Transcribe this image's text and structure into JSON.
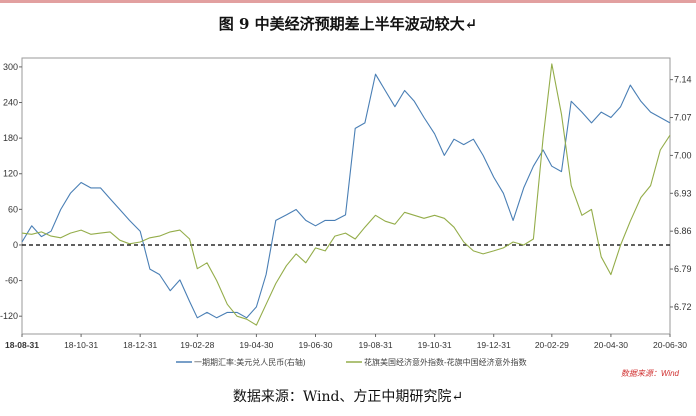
{
  "figure": {
    "title": "图 9    中美经济预期差上半年波动较大↵",
    "source": "数据来源：Wind、方正中期研究院↵",
    "watermark": "数据来源：Wind"
  },
  "colors": {
    "series1": "#4a7fb5",
    "series2": "#94ad4a",
    "zero_line": "#000000",
    "top_rule": "#e2a0a0"
  },
  "chart_data": {
    "type": "line",
    "title": "",
    "xlabel": "",
    "ylabel": "",
    "x_ticks": [
      "18-08-31",
      "18-10-31",
      "18-12-31",
      "19-02-28",
      "19-04-30",
      "19-06-30",
      "19-08-31",
      "19-10-31",
      "19-12-31",
      "20-02-29",
      "20-04-30",
      "20-06-30"
    ],
    "y_left": {
      "ticks": [
        "300",
        "240",
        "180",
        "120",
        "60",
        "0",
        "-60",
        "-120"
      ],
      "min": -150,
      "max": 315
    },
    "y_right": {
      "ticks": [
        "7.14",
        "7.07",
        "7.00",
        "6.93",
        "6.86",
        "6.79",
        "6.72"
      ],
      "min": 6.67,
      "max": 7.18
    },
    "zero_reference_line": true,
    "legend_position": "bottom",
    "series": [
      {
        "name": "一期期汇率:美元兑人民币(右轴)",
        "axis": "right",
        "points": [
          [
            "18-08-31",
            6.84
          ],
          [
            "18-09-10",
            6.87
          ],
          [
            "18-09-20",
            6.85
          ],
          [
            "18-09-30",
            6.86
          ],
          [
            "18-10-10",
            6.9
          ],
          [
            "18-10-20",
            6.93
          ],
          [
            "18-10-31",
            6.95
          ],
          [
            "18-11-10",
            6.94
          ],
          [
            "18-11-20",
            6.94
          ],
          [
            "18-11-30",
            6.92
          ],
          [
            "18-12-10",
            6.9
          ],
          [
            "18-12-20",
            6.88
          ],
          [
            "18-12-31",
            6.86
          ],
          [
            "19-01-10",
            6.79
          ],
          [
            "19-01-20",
            6.78
          ],
          [
            "19-01-31",
            6.75
          ],
          [
            "19-02-10",
            6.77
          ],
          [
            "19-02-20",
            6.73
          ],
          [
            "19-02-28",
            6.7
          ],
          [
            "19-03-10",
            6.71
          ],
          [
            "19-03-20",
            6.7
          ],
          [
            "19-03-31",
            6.71
          ],
          [
            "19-04-10",
            6.71
          ],
          [
            "19-04-20",
            6.7
          ],
          [
            "19-04-30",
            6.72
          ],
          [
            "19-05-10",
            6.78
          ],
          [
            "19-05-20",
            6.88
          ],
          [
            "19-05-31",
            6.89
          ],
          [
            "19-06-10",
            6.9
          ],
          [
            "19-06-20",
            6.88
          ],
          [
            "19-06-30",
            6.87
          ],
          [
            "19-07-10",
            6.88
          ],
          [
            "19-07-20",
            6.88
          ],
          [
            "19-07-31",
            6.89
          ],
          [
            "19-08-10",
            7.05
          ],
          [
            "19-08-20",
            7.06
          ],
          [
            "19-08-31",
            7.15
          ],
          [
            "19-09-10",
            7.12
          ],
          [
            "19-09-20",
            7.09
          ],
          [
            "19-09-30",
            7.12
          ],
          [
            "19-10-10",
            7.1
          ],
          [
            "19-10-20",
            7.07
          ],
          [
            "19-10-31",
            7.04
          ],
          [
            "19-11-10",
            7.0
          ],
          [
            "19-11-20",
            7.03
          ],
          [
            "19-11-30",
            7.02
          ],
          [
            "19-12-10",
            7.03
          ],
          [
            "19-12-20",
            7.0
          ],
          [
            "19-12-31",
            6.96
          ],
          [
            "20-01-10",
            6.93
          ],
          [
            "20-01-20",
            6.88
          ],
          [
            "20-01-31",
            6.94
          ],
          [
            "20-02-10",
            6.98
          ],
          [
            "20-02-20",
            7.01
          ],
          [
            "20-02-29",
            6.98
          ],
          [
            "20-03-10",
            6.97
          ],
          [
            "20-03-20",
            7.1
          ],
          [
            "20-03-31",
            7.08
          ],
          [
            "20-04-10",
            7.06
          ],
          [
            "20-04-20",
            7.08
          ],
          [
            "20-04-30",
            7.07
          ],
          [
            "20-05-10",
            7.09
          ],
          [
            "20-05-20",
            7.13
          ],
          [
            "20-05-31",
            7.1
          ],
          [
            "20-06-10",
            7.08
          ],
          [
            "20-06-20",
            7.07
          ],
          [
            "20-06-30",
            7.06
          ]
        ]
      },
      {
        "name": "花旗美国经济意外指数-花旗中国经济意外指数",
        "axis": "left",
        "points": [
          [
            "18-08-31",
            20
          ],
          [
            "18-09-10",
            18
          ],
          [
            "18-09-20",
            22
          ],
          [
            "18-09-30",
            15
          ],
          [
            "18-10-10",
            12
          ],
          [
            "18-10-20",
            20
          ],
          [
            "18-10-31",
            25
          ],
          [
            "18-11-10",
            18
          ],
          [
            "18-11-20",
            20
          ],
          [
            "18-11-30",
            22
          ],
          [
            "18-12-10",
            8
          ],
          [
            "18-12-20",
            2
          ],
          [
            "18-12-31",
            5
          ],
          [
            "19-01-10",
            12
          ],
          [
            "19-01-20",
            15
          ],
          [
            "19-01-31",
            22
          ],
          [
            "19-02-10",
            25
          ],
          [
            "19-02-20",
            10
          ],
          [
            "19-02-28",
            -40
          ],
          [
            "19-03-10",
            -30
          ],
          [
            "19-03-20",
            -60
          ],
          [
            "19-03-31",
            -100
          ],
          [
            "19-04-10",
            -120
          ],
          [
            "19-04-20",
            -125
          ],
          [
            "19-04-30",
            -135
          ],
          [
            "19-05-10",
            -100
          ],
          [
            "19-05-20",
            -65
          ],
          [
            "19-05-31",
            -35
          ],
          [
            "19-06-10",
            -15
          ],
          [
            "19-06-20",
            -30
          ],
          [
            "19-06-30",
            -5
          ],
          [
            "19-07-10",
            -10
          ],
          [
            "19-07-20",
            15
          ],
          [
            "19-07-31",
            20
          ],
          [
            "19-08-10",
            10
          ],
          [
            "19-08-20",
            30
          ],
          [
            "19-08-31",
            50
          ],
          [
            "19-09-10",
            40
          ],
          [
            "19-09-20",
            35
          ],
          [
            "19-09-30",
            55
          ],
          [
            "19-10-10",
            50
          ],
          [
            "19-10-20",
            45
          ],
          [
            "19-10-31",
            50
          ],
          [
            "19-11-10",
            45
          ],
          [
            "19-11-20",
            30
          ],
          [
            "19-11-30",
            5
          ],
          [
            "19-12-10",
            -10
          ],
          [
            "19-12-20",
            -15
          ],
          [
            "19-12-31",
            -10
          ],
          [
            "20-01-10",
            -5
          ],
          [
            "20-01-20",
            5
          ],
          [
            "20-01-31",
            0
          ],
          [
            "20-02-10",
            10
          ],
          [
            "20-02-20",
            180
          ],
          [
            "20-02-29",
            305
          ],
          [
            "20-03-10",
            220
          ],
          [
            "20-03-20",
            100
          ],
          [
            "20-03-31",
            50
          ],
          [
            "20-04-10",
            60
          ],
          [
            "20-04-20",
            -20
          ],
          [
            "20-04-30",
            -50
          ],
          [
            "20-05-10",
            0
          ],
          [
            "20-05-20",
            40
          ],
          [
            "20-05-31",
            80
          ],
          [
            "20-06-10",
            100
          ],
          [
            "20-06-20",
            160
          ],
          [
            "20-06-30",
            185
          ]
        ]
      }
    ]
  }
}
